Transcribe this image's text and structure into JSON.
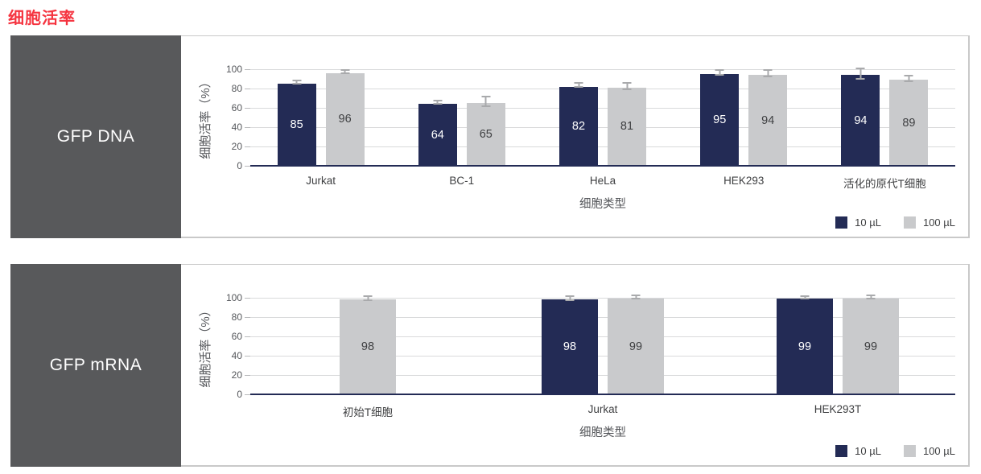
{
  "page_title": "细胞活率",
  "colors": {
    "accent_red": "#f5333f",
    "navy": "#232b55",
    "bar_gray": "#c9cacc",
    "sidebar_gray": "#58595b",
    "grid_gray": "#d9dadb",
    "axis_text": "#54565a"
  },
  "legend": {
    "items": [
      {
        "label": "10 µL",
        "color": "#232b55"
      },
      {
        "label": "100 µL",
        "color": "#c9cacc"
      }
    ]
  },
  "chart_data": [
    {
      "type": "bar",
      "panel_label": "GFP DNA",
      "xlabel": "细胞类型",
      "ylabel": "细胞活率（%）",
      "ylim": [
        0,
        100
      ],
      "yticks": [
        0,
        20,
        40,
        60,
        80,
        100
      ],
      "grid": true,
      "legend_position": "bottom-right",
      "categories": [
        "Jurkat",
        "BC-1",
        "HeLa",
        "HEK293",
        "活化的原代T细胞"
      ],
      "series": [
        {
          "name": "10 µL",
          "color": "#232b55",
          "label_color": "#ffffff",
          "values": [
            85,
            64,
            82,
            95,
            94
          ],
          "errors": [
            1,
            1,
            1.5,
            1.5,
            4.5
          ]
        },
        {
          "name": "100 µL",
          "color": "#c9cacc",
          "label_color": "#3f4042",
          "values": [
            96,
            65,
            81,
            94,
            89
          ],
          "errors": [
            1,
            4,
            2.5,
            2.5,
            2
          ]
        }
      ]
    },
    {
      "type": "bar",
      "panel_label": "GFP mRNA",
      "xlabel": "细胞类型",
      "ylabel": "细胞活率（%）",
      "ylim": [
        0,
        100
      ],
      "yticks": [
        0,
        20,
        40,
        60,
        80,
        100
      ],
      "grid": true,
      "legend_position": "bottom-right",
      "categories": [
        "初始T细胞",
        "Jurkat",
        "HEK293T"
      ],
      "series": [
        {
          "name": "10 µL",
          "color": "#232b55",
          "label_color": "#ffffff",
          "values": [
            null,
            98,
            99
          ],
          "errors": [
            null,
            1.5,
            0.5
          ]
        },
        {
          "name": "100 µL",
          "color": "#c9cacc",
          "label_color": "#3f4042",
          "values": [
            98,
            99,
            99
          ],
          "errors": [
            1,
            1,
            1
          ]
        }
      ]
    }
  ]
}
